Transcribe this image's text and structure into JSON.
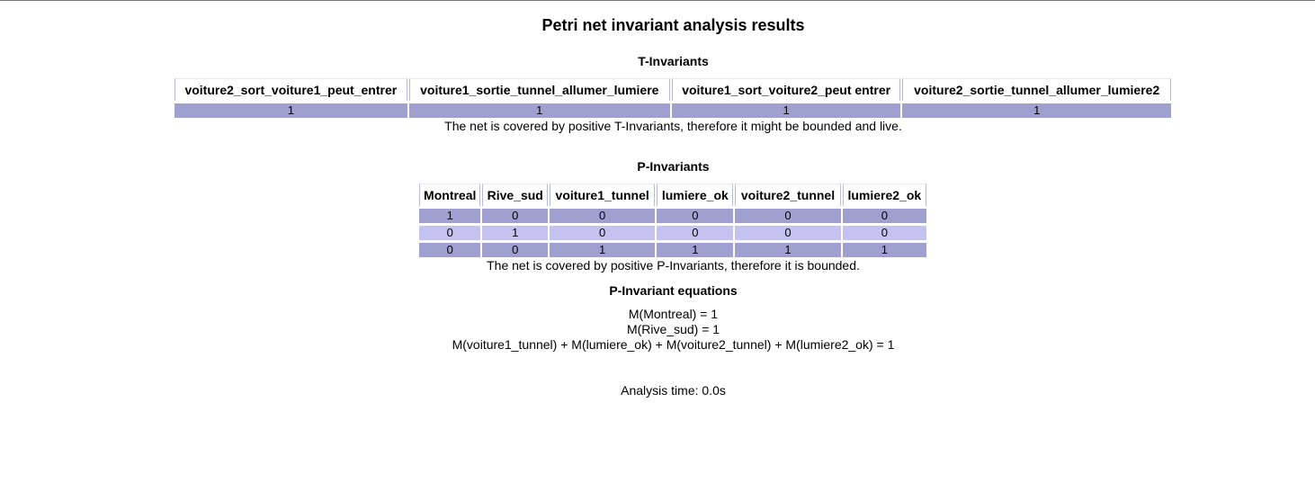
{
  "title": "Petri net invariant analysis results",
  "t_invariants": {
    "heading": "T-Invariants",
    "columns": [
      "voiture2_sort_voiture1_peut_entrer",
      "voiture1_sortie_tunnel_allumer_lumiere",
      "voiture1_sort_voiture2_peut entrer",
      "voiture2_sortie_tunnel_allumer_lumiere2"
    ],
    "rows": [
      [
        "1",
        "1",
        "1",
        "1"
      ]
    ],
    "note": "The net is covered by positive T-Invariants, therefore it might be bounded and live."
  },
  "p_invariants": {
    "heading": "P-Invariants",
    "columns": [
      "Montreal",
      "Rive_sud",
      "voiture1_tunnel",
      "lumiere_ok",
      "voiture2_tunnel",
      "lumiere2_ok"
    ],
    "rows": [
      [
        "1",
        "0",
        "0",
        "0",
        "0",
        "0"
      ],
      [
        "0",
        "1",
        "0",
        "0",
        "0",
        "0"
      ],
      [
        "0",
        "0",
        "1",
        "1",
        "1",
        "1"
      ]
    ],
    "note": "The net is covered by positive P-Invariants, therefore it is bounded."
  },
  "equations": {
    "heading": "P-Invariant equations",
    "lines": [
      "M(Montreal) = 1",
      "M(Rive_sud) = 1",
      "M(voiture1_tunnel) + M(lumiere_ok) + M(voiture2_tunnel) + M(lumiere2_ok) = 1"
    ]
  },
  "analysis_time": "Analysis time: 0.0s",
  "colors": {
    "row_dark": "#a0a0d0",
    "row_light": "#c4c2ee"
  }
}
